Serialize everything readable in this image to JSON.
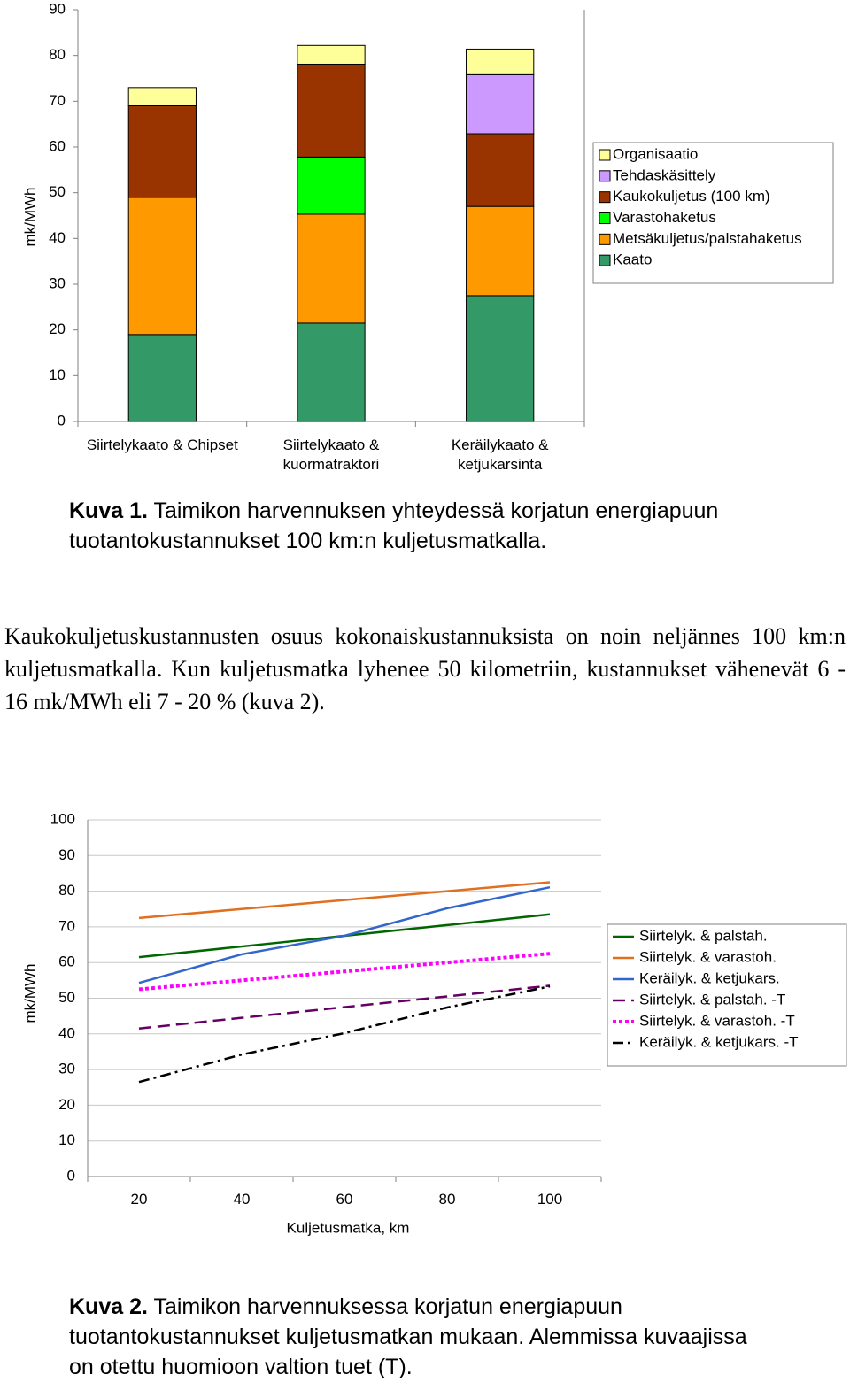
{
  "chart_data": [
    {
      "type": "stacked-bar",
      "y_label": "mk/MWh",
      "categories": [
        "Siirtelykaato & Chipset",
        "Siirtelykaato & kuormatraktori",
        "Keräilykaato & ketjukarsinta"
      ],
      "series": [
        {
          "name": "Kaato",
          "color": "#339966",
          "values": [
            19,
            21.5,
            27.5
          ]
        },
        {
          "name": "Metsäkuljetus/palstahaketus",
          "color": "#ff9900",
          "values": [
            30,
            23.8,
            19.5
          ]
        },
        {
          "name": "Varastohaketus",
          "color": "#00ff00",
          "values": [
            null,
            12.5,
            null
          ]
        },
        {
          "name": "Kaukokuljetus (100 km)",
          "color": "#993300",
          "values": [
            20,
            20.3,
            15.9
          ]
        },
        {
          "name": "Tehdaskäsittely",
          "color": "#cc99ff",
          "values": [
            null,
            null,
            12.9
          ]
        },
        {
          "name": "Organisaatio",
          "color": "#ffff99",
          "values": [
            4,
            4.1,
            5.6
          ]
        }
      ],
      "ylim": [
        0,
        90
      ],
      "yticks": [
        0,
        10,
        20,
        30,
        40,
        50,
        60,
        70,
        80,
        90
      ],
      "grid": false,
      "legend": "right"
    },
    {
      "type": "line",
      "y_label": "mk/MWh",
      "x_label": "Kuljetusmatka, km",
      "categories": [
        "20",
        "40",
        "60",
        "80",
        "100"
      ],
      "series": [
        {
          "name": "Siirtelyk. & palstah.",
          "color": "#006600",
          "dash": "solid",
          "values": [
            61.5,
            64.5,
            67.5,
            70.5,
            73.5
          ]
        },
        {
          "name": "Siirtelyk. & varastoh.",
          "color": "#e07020",
          "dash": "solid",
          "values": [
            72.5,
            75,
            77.5,
            80,
            82.5
          ]
        },
        {
          "name": "Keräilyk. & ketjukars.",
          "color": "#3366cc",
          "dash": "solid",
          "values": [
            54.3,
            62.3,
            67.5,
            75.2,
            81.1
          ]
        },
        {
          "name": "Siirtelyk. & palstah. -T",
          "color": "#660066",
          "dash": "dashed",
          "values": [
            41.5,
            44.5,
            47.5,
            50.5,
            53.5
          ]
        },
        {
          "name": "Siirtelyk. & varastoh. -T",
          "color": "#ff00ff",
          "dash": "dotted",
          "values": [
            52.5,
            55,
            57.5,
            60,
            62.5
          ]
        },
        {
          "name": "Keräilyk. & ketjukars. -T",
          "color": "#000000",
          "dash": "dashdot",
          "values": [
            26.5,
            34.2,
            40.2,
            47.4,
            53.3
          ]
        }
      ],
      "ylim": [
        0,
        100
      ],
      "yticks": [
        0,
        10,
        20,
        30,
        40,
        50,
        60,
        70,
        80,
        90,
        100
      ],
      "grid": true,
      "legend": "right"
    }
  ],
  "captions": [
    {
      "label": "Kuva 1.",
      "text": "Taimikon harvennuksen yhteydessä korjatun energiapuun tuotantokustannukset 100 km:n kuljetusmatkalla."
    },
    {
      "label": "Kuva 2.",
      "text": "Taimikon harvennuksessa korjatun energiapuun tuotantokustannukset kuljetusmatkan mukaan. Alemmissa kuvaajissa on otettu huomioon valtion tuet (T)."
    }
  ],
  "paragraph": "Kaukokuljetuskustannusten osuus kokonaiskustannuksista on noin neljännes 100 km:n kuljetusmatkalla. Kun kuljetusmatka lyhenee 50 kilometriin, kustannukset vähenevät 6 - 16 mk/MWh eli 7 - 20 % (kuva 2)."
}
